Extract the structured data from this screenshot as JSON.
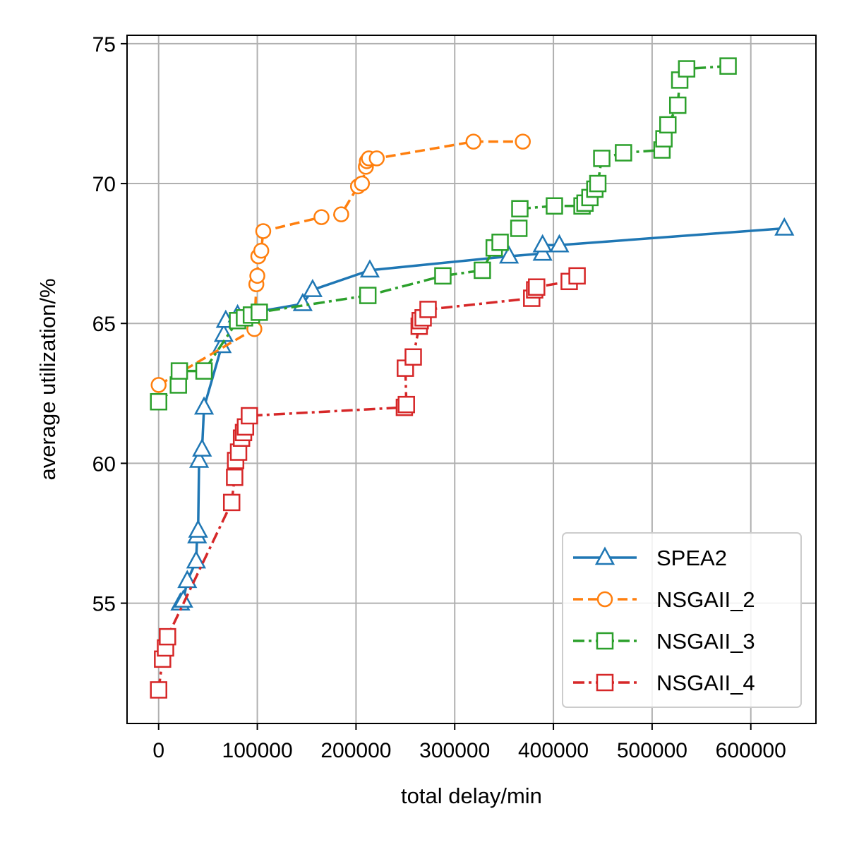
{
  "chart_data": {
    "type": "line",
    "xlabel": "total delay/min",
    "ylabel": "average utilization/%",
    "xlim": [
      -32000,
      666000
    ],
    "ylim": [
      50.7,
      75.3
    ],
    "xticks": [
      0,
      100000,
      200000,
      300000,
      400000,
      500000,
      600000
    ],
    "xtick_labels": [
      "0",
      "100000",
      "200000",
      "300000",
      "400000",
      "500000",
      "600000"
    ],
    "yticks": [
      55,
      60,
      65,
      70,
      75
    ],
    "ytick_labels": [
      "55",
      "60",
      "65",
      "70",
      "75"
    ],
    "grid": true,
    "legend_position": "lower-right",
    "series": [
      {
        "name": "SPEA2",
        "color": "#1f77b4",
        "marker": "triangle",
        "linestyle": "solid",
        "points": [
          [
            22000,
            55.0
          ],
          [
            25000,
            55.1
          ],
          [
            29000,
            55.8
          ],
          [
            38000,
            56.5
          ],
          [
            39000,
            57.4
          ],
          [
            40000,
            57.6
          ],
          [
            41000,
            60.1
          ],
          [
            44000,
            60.5
          ],
          [
            46000,
            62.0
          ],
          [
            64000,
            64.2
          ],
          [
            66000,
            64.6
          ],
          [
            68000,
            65.1
          ],
          [
            80000,
            65.3
          ],
          [
            146000,
            65.7
          ],
          [
            156000,
            66.2
          ],
          [
            214000,
            66.9
          ],
          [
            355000,
            67.4
          ],
          [
            389000,
            67.5
          ],
          [
            389000,
            67.8
          ],
          [
            406000,
            67.8
          ],
          [
            634000,
            68.4
          ]
        ]
      },
      {
        "name": "NSGAII_2",
        "color": "#ff7f0e",
        "marker": "circle",
        "linestyle": "dashed",
        "points": [
          [
            0,
            62.8
          ],
          [
            97000,
            64.8
          ],
          [
            99000,
            66.4
          ],
          [
            100000,
            66.7
          ],
          [
            101000,
            67.4
          ],
          [
            104000,
            67.6
          ],
          [
            106000,
            68.3
          ],
          [
            165000,
            68.8
          ],
          [
            185000,
            68.9
          ],
          [
            202000,
            69.9
          ],
          [
            206000,
            70.0
          ],
          [
            210000,
            70.6
          ],
          [
            211000,
            70.8
          ],
          [
            213000,
            70.9
          ],
          [
            221000,
            70.9
          ],
          [
            319000,
            71.5
          ],
          [
            369000,
            71.5
          ]
        ]
      },
      {
        "name": "NSGAII_3",
        "color": "#2ca02c",
        "marker": "square",
        "linestyle": "dashdot",
        "points": [
          [
            0,
            62.2
          ],
          [
            20000,
            62.8
          ],
          [
            21000,
            63.3
          ],
          [
            46000,
            63.3
          ],
          [
            80000,
            65.1
          ],
          [
            87000,
            65.2
          ],
          [
            94000,
            65.3
          ],
          [
            102000,
            65.4
          ],
          [
            212000,
            66.0
          ],
          [
            288000,
            66.7
          ],
          [
            328000,
            66.9
          ],
          [
            340000,
            67.7
          ],
          [
            346000,
            67.9
          ],
          [
            365000,
            68.4
          ],
          [
            366000,
            69.1
          ],
          [
            401000,
            69.2
          ],
          [
            429000,
            69.2
          ],
          [
            432000,
            69.3
          ],
          [
            437000,
            69.5
          ],
          [
            442000,
            69.8
          ],
          [
            445000,
            70.0
          ],
          [
            449000,
            70.9
          ],
          [
            471000,
            71.1
          ],
          [
            510000,
            71.2
          ],
          [
            512000,
            71.6
          ],
          [
            516000,
            72.1
          ],
          [
            526000,
            72.8
          ],
          [
            528000,
            73.7
          ],
          [
            535000,
            74.1
          ],
          [
            577000,
            74.2
          ]
        ]
      },
      {
        "name": "NSGAII_4",
        "color": "#d62728",
        "marker": "square",
        "linestyle": "dashdot",
        "points": [
          [
            0,
            51.9
          ],
          [
            4000,
            53.0
          ],
          [
            7000,
            53.4
          ],
          [
            9000,
            53.8
          ],
          [
            74000,
            58.6
          ],
          [
            77000,
            59.5
          ],
          [
            78000,
            60.1
          ],
          [
            81000,
            60.4
          ],
          [
            84000,
            60.9
          ],
          [
            86000,
            61.1
          ],
          [
            88000,
            61.3
          ],
          [
            92000,
            61.7
          ],
          [
            249000,
            62.0
          ],
          [
            251000,
            62.1
          ],
          [
            250000,
            63.4
          ],
          [
            258000,
            63.8
          ],
          [
            264000,
            64.9
          ],
          [
            265000,
            65.1
          ],
          [
            268000,
            65.2
          ],
          [
            273000,
            65.5
          ],
          [
            378000,
            65.9
          ],
          [
            381000,
            66.2
          ],
          [
            383000,
            66.3
          ],
          [
            416000,
            66.5
          ],
          [
            424000,
            66.7
          ]
        ]
      }
    ]
  }
}
